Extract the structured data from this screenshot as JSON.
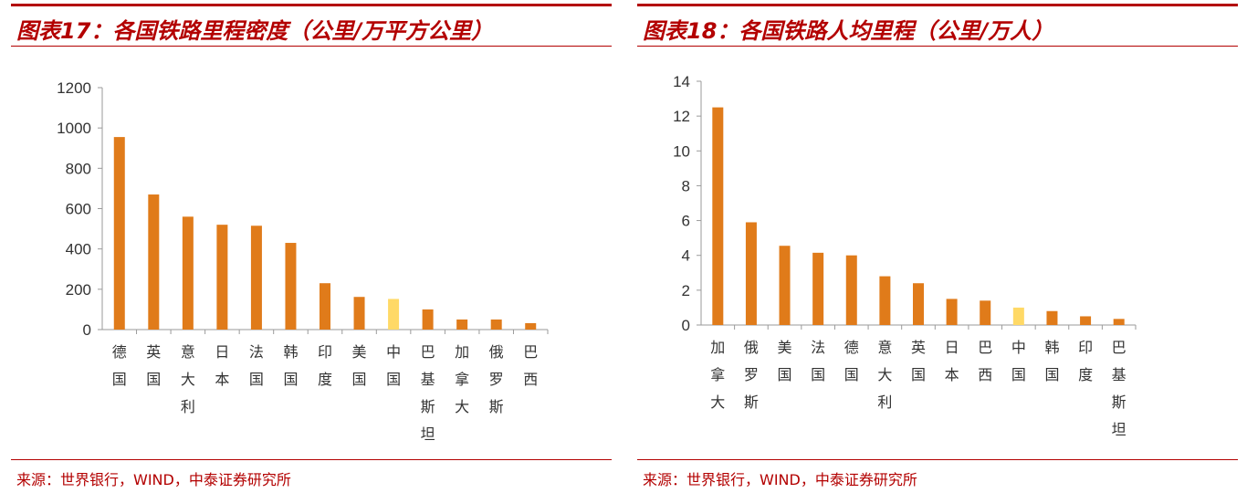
{
  "colors": {
    "accent": "#b30000",
    "bar": "#e07b1a",
    "highlight": "#ffd966"
  },
  "chart_data": [
    {
      "type": "bar",
      "title": "图表17：各国铁路里程密度（公里/万平方公里）",
      "source": "来源：世界银行，WIND，中泰证券研究所",
      "categories": [
        "德国",
        "英国",
        "意大利",
        "日本",
        "法国",
        "韩国",
        "印度",
        "美国",
        "中国",
        "巴基斯坦",
        "加拿大",
        "俄罗斯",
        "巴西"
      ],
      "values": [
        955,
        670,
        560,
        520,
        515,
        430,
        230,
        162,
        152,
        100,
        50,
        50,
        32
      ],
      "highlight": "中国",
      "ylim": [
        0,
        1200
      ],
      "yticks": [
        0,
        200,
        400,
        600,
        800,
        1000,
        1200
      ],
      "grid": false
    },
    {
      "type": "bar",
      "title": "图表18：各国铁路人均里程（公里/万人）",
      "source": "来源：世界银行，WIND，中泰证券研究所",
      "categories": [
        "加拿大",
        "俄罗斯",
        "美国",
        "法国",
        "德国",
        "意大利",
        "英国",
        "日本",
        "巴西",
        "中国",
        "韩国",
        "印度",
        "巴基斯坦"
      ],
      "values": [
        12.5,
        5.9,
        4.55,
        4.15,
        4.0,
        2.8,
        2.4,
        1.5,
        1.4,
        1.0,
        0.8,
        0.5,
        0.35
      ],
      "highlight": "中国",
      "ylim": [
        0,
        14
      ],
      "yticks": [
        0,
        2,
        4,
        6,
        8,
        10,
        12,
        14
      ],
      "grid": false
    }
  ]
}
